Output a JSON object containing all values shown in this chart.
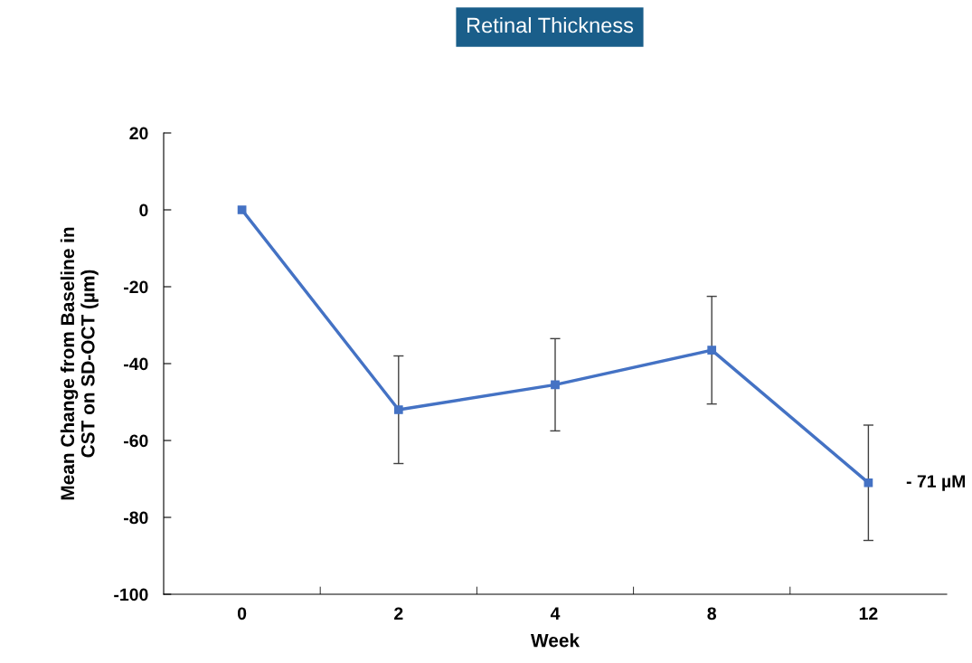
{
  "chart_data": {
    "type": "line",
    "title": "Retinal Thickness",
    "xlabel": "Week",
    "ylabel": "Mean Change from Baseline in\nCST on SD-OCT (µm)",
    "categories": [
      "0",
      "2",
      "4",
      "8",
      "12"
    ],
    "series": [
      {
        "color": "#4472c4",
        "values": [
          0,
          -52,
          -45.5,
          -36.5,
          -71
        ],
        "errors": [
          null,
          14,
          12,
          14,
          15
        ]
      }
    ],
    "ylim": [
      -100,
      20
    ],
    "yticks": [
      -100,
      -80,
      -60,
      -40,
      -20,
      0,
      20
    ],
    "annotations": [
      {
        "text": "- 71 µM",
        "x": "12",
        "y": -71
      }
    ],
    "marker": "square",
    "line_style": "solid",
    "grid": false,
    "legend": false
  }
}
